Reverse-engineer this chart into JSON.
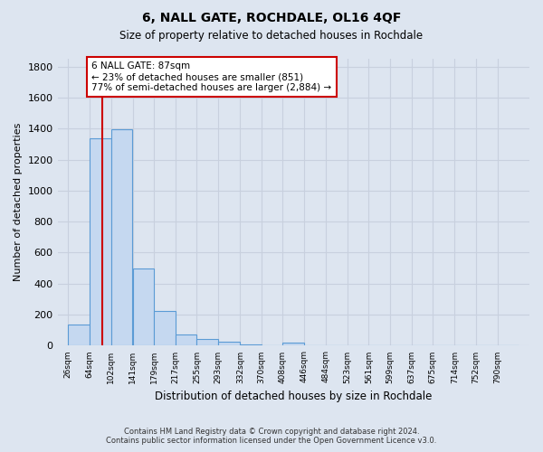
{
  "title": "6, NALL GATE, ROCHDALE, OL16 4QF",
  "subtitle": "Size of property relative to detached houses in Rochdale",
  "xlabel": "Distribution of detached houses by size in Rochdale",
  "ylabel": "Number of detached properties",
  "footer_line1": "Contains HM Land Registry data © Crown copyright and database right 2024.",
  "footer_line2": "Contains public sector information licensed under the Open Government Licence v3.0.",
  "bar_labels": [
    "26sqm",
    "64sqm",
    "102sqm",
    "141sqm",
    "179sqm",
    "217sqm",
    "255sqm",
    "293sqm",
    "332sqm",
    "370sqm",
    "408sqm",
    "446sqm",
    "484sqm",
    "523sqm",
    "561sqm",
    "599sqm",
    "637sqm",
    "675sqm",
    "714sqm",
    "752sqm",
    "790sqm"
  ],
  "bar_values": [
    135,
    1340,
    1395,
    495,
    225,
    75,
    45,
    25,
    10,
    0,
    20,
    0,
    0,
    0,
    0,
    0,
    0,
    0,
    0,
    0,
    0
  ],
  "bar_color": "#c5d8f0",
  "bar_edge_color": "#5b9bd5",
  "grid_color": "#c8d0de",
  "background_color": "#dde5f0",
  "property_line_color": "#cc0000",
  "annotation_text": "6 NALL GATE: 87sqm\n← 23% of detached houses are smaller (851)\n77% of semi-detached houses are larger (2,884) →",
  "annotation_box_color": "#ffffff",
  "annotation_box_edge_color": "#cc0000",
  "ylim": [
    0,
    1850
  ],
  "yticks": [
    0,
    200,
    400,
    600,
    800,
    1000,
    1200,
    1400,
    1600,
    1800
  ]
}
